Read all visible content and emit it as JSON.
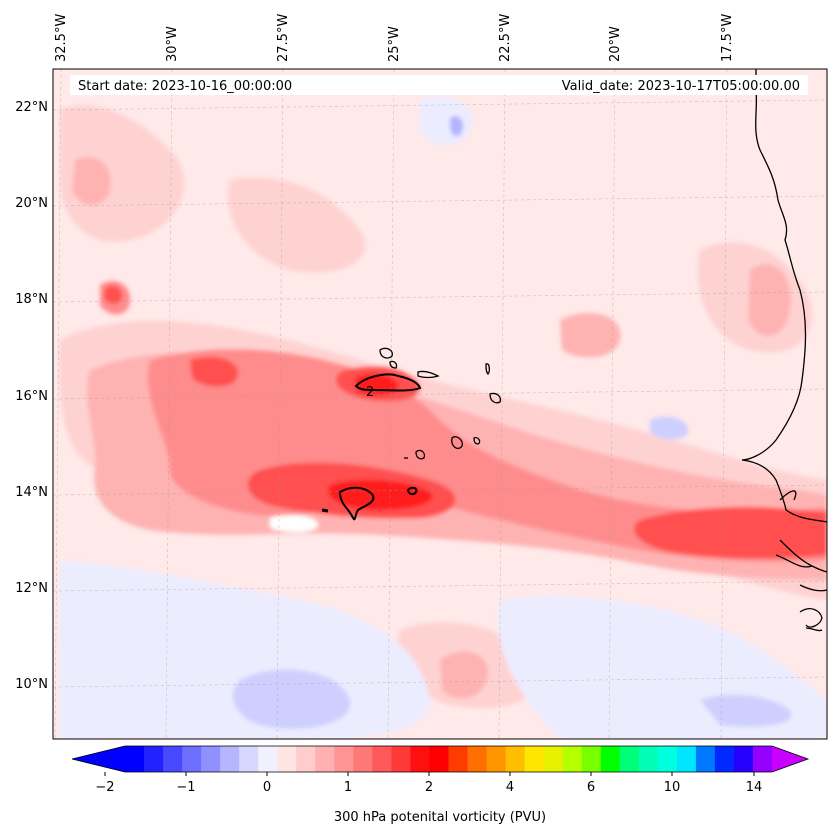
{
  "header": {
    "start_date": "Start date: 2023-10-16_00:00:00",
    "valid_date": "Valid_date: 2023-10-17T05:00:00.00"
  },
  "axes": {
    "lon_labels": [
      "32.5°W",
      "30°W",
      "27.5°W",
      "25°W",
      "22.5°W",
      "20°W",
      "17.5°W"
    ],
    "lat_labels": [
      "22°N",
      "20°N",
      "18°N",
      "16°N",
      "14°N",
      "12°N",
      "10°N"
    ]
  },
  "contour_label": "2",
  "colorbar": {
    "label": "300 hPa potenital vorticity (PVU)",
    "ticks": [
      "−2",
      "−1",
      "0",
      "1",
      "2",
      "4",
      "6",
      "10",
      "14"
    ],
    "colors": [
      "#0000ff",
      "#2222ff",
      "#4848ff",
      "#6e6eff",
      "#9090ff",
      "#b6b6ff",
      "#d8d8ff",
      "#f0f0ff",
      "#ffe4e4",
      "#ffcccc",
      "#ffb0b0",
      "#ff9494",
      "#ff7878",
      "#ff5858",
      "#ff3838",
      "#ff1010",
      "#ff0000",
      "#ff3c00",
      "#ff6e00",
      "#ff9600",
      "#ffbe00",
      "#ffe600",
      "#e6f000",
      "#b4ff00",
      "#78ff00",
      "#00ff00",
      "#00ff78",
      "#00ffb4",
      "#00ffdc",
      "#00e6ff",
      "#0078ff",
      "#0028ff",
      "#2800ff",
      "#9600ff"
    ],
    "low_extend_color": "#0000ff",
    "high_extend_color": "#c800ff"
  },
  "map_colors": {
    "background": "#ffe9e9",
    "light_pink": "#ffd2d2",
    "pink": "#ffb2b2",
    "salmon": "#ff8c8c",
    "red": "#ff5050",
    "deep_red": "#ff1e1e",
    "light_blue": "#ececff",
    "blue": "#cfcfff",
    "mid_blue": "#b4b4ff",
    "coast": "#000000"
  }
}
